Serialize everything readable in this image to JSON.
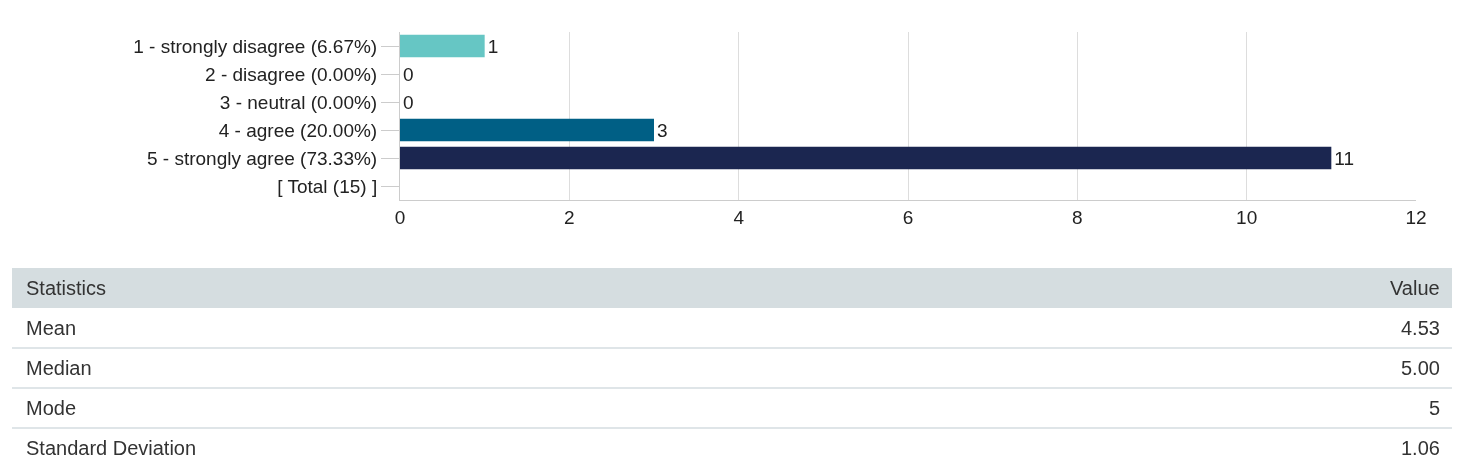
{
  "chart_data": {
    "type": "bar",
    "orientation": "horizontal",
    "categories": [
      "1 - strongly disagree (6.67%)",
      "2 - disagree (0.00%)",
      "3 - neutral (0.00%)",
      "4 - agree (20.00%)",
      "5 - strongly agree (73.33%)",
      "[ Total (15) ]"
    ],
    "values": [
      1,
      0,
      0,
      3,
      11,
      null
    ],
    "colors": [
      "#66c6c4",
      null,
      null,
      "#005f85",
      "#1b2650",
      null
    ],
    "xlim": [
      0,
      12
    ],
    "xticks": [
      0,
      2,
      4,
      6,
      8,
      10,
      12
    ],
    "grid": "x",
    "data_labels": true,
    "legend": false,
    "annotations": [
      "Statistics",
      "Value",
      "Mean",
      "4.53",
      "Median",
      "5.00",
      "Mode",
      "5",
      "Standard Deviation",
      "1.06"
    ]
  }
}
